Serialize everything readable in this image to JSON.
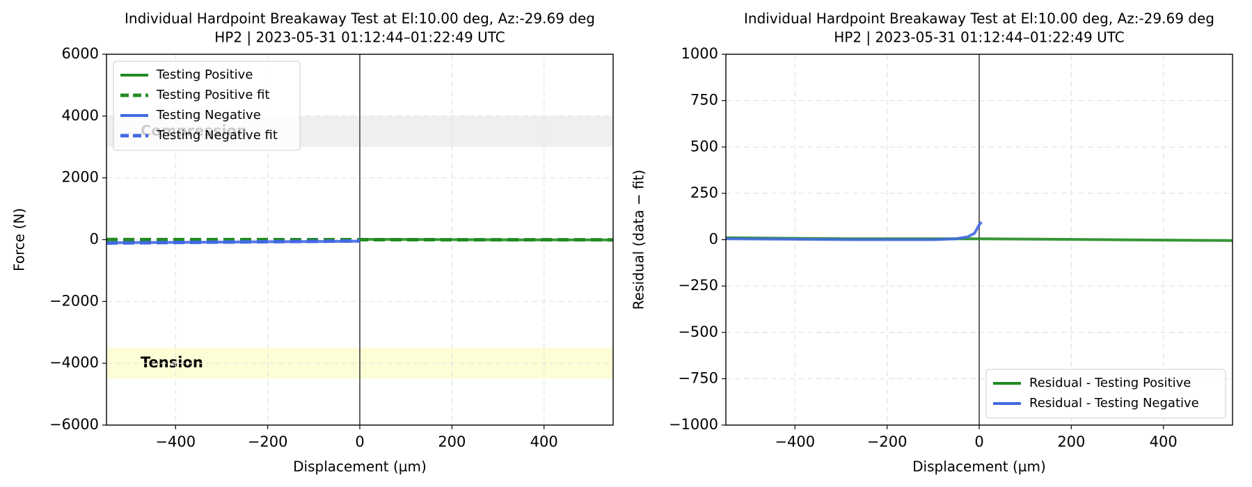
{
  "chart_data": [
    {
      "type": "line",
      "title": "Individual Hardpoint Breakaway Test at El:10.00 deg, Az:-29.69 deg",
      "subtitle": "HP2 | 2023-05-31 01:12:44–01:22:49 UTC",
      "x_label": "Displacement (µm)",
      "y_label": "Force (N)",
      "xlim": [
        -550,
        550
      ],
      "xticks": [
        {
          "value": -400,
          "label": "−400"
        },
        {
          "value": -200,
          "label": "−200"
        },
        0,
        200,
        400
      ],
      "ylim": [
        -6000,
        6000
      ],
      "yticks": [
        {
          "value": -6000,
          "label": "−6000"
        },
        {
          "value": -4000,
          "label": "−4000"
        },
        {
          "value": -2000,
          "label": "−2000"
        },
        0,
        2000,
        4000,
        6000
      ],
      "grid": true,
      "vline": 0,
      "legend": "upper left",
      "bands": [
        {
          "label": "Compression",
          "range": [
            3000,
            4000
          ],
          "color": "#efefef"
        },
        {
          "label": "Tension",
          "range": [
            -4500,
            -3500
          ],
          "color": "#fdfdd6"
        }
      ],
      "series": [
        {
          "name": "Testing Positive",
          "color": "#228b22",
          "style": "solid",
          "x": [
            0,
            110,
            220,
            330,
            440,
            550
          ],
          "values": [
            10,
            5,
            0,
            -5,
            -5,
            -10
          ]
        },
        {
          "name": "Testing Positive fit",
          "color": "#228b22",
          "style": "dashed",
          "x": [
            -550,
            550
          ],
          "values": [
            5,
            -5
          ]
        },
        {
          "name": "Testing Negative",
          "color": "#4169e1",
          "style": "solid",
          "x": [
            -550,
            -440,
            -330,
            -220,
            -110,
            0
          ],
          "values": [
            -100,
            -90,
            -80,
            -70,
            -60,
            -50
          ]
        },
        {
          "name": "Testing Negative fit",
          "color": "#4169e1",
          "style": "dashed",
          "x": [
            -550,
            0
          ],
          "values": [
            -110,
            -40
          ]
        }
      ]
    },
    {
      "type": "line",
      "title": "Individual Hardpoint Breakaway Test at El:10.00 deg, Az:-29.69 deg",
      "subtitle": "HP2 | 2023-05-31 01:12:44–01:22:49 UTC",
      "x_label": "Displacement (µm)",
      "y_label": "Residual (data − fit)",
      "xlim": [
        -550,
        550
      ],
      "xticks": [
        {
          "value": -400,
          "label": "−400"
        },
        {
          "value": -200,
          "label": "−200"
        },
        0,
        200,
        400
      ],
      "ylim": [
        -1000,
        1000
      ],
      "yticks": [
        {
          "value": -1000,
          "label": "−1000"
        },
        {
          "value": -750,
          "label": "−750"
        },
        {
          "value": -500,
          "label": "−500"
        },
        {
          "value": -250,
          "label": "−250"
        },
        0,
        250,
        500,
        750,
        1000
      ],
      "grid": true,
      "vline": 0,
      "legend": "lower right",
      "series": [
        {
          "name": "Residual - Testing Positive",
          "color": "#228b22",
          "style": "solid",
          "x": [
            -550,
            -275,
            0,
            275,
            550
          ],
          "values": [
            10,
            5,
            5,
            0,
            -5
          ]
        },
        {
          "name": "Residual - Testing Negative",
          "color": "#4169e1",
          "style": "solid",
          "x": [
            -550,
            -275,
            -100,
            -50,
            -25,
            -10,
            0,
            5
          ],
          "values": [
            5,
            0,
            0,
            5,
            15,
            35,
            80,
            95
          ]
        }
      ]
    }
  ]
}
